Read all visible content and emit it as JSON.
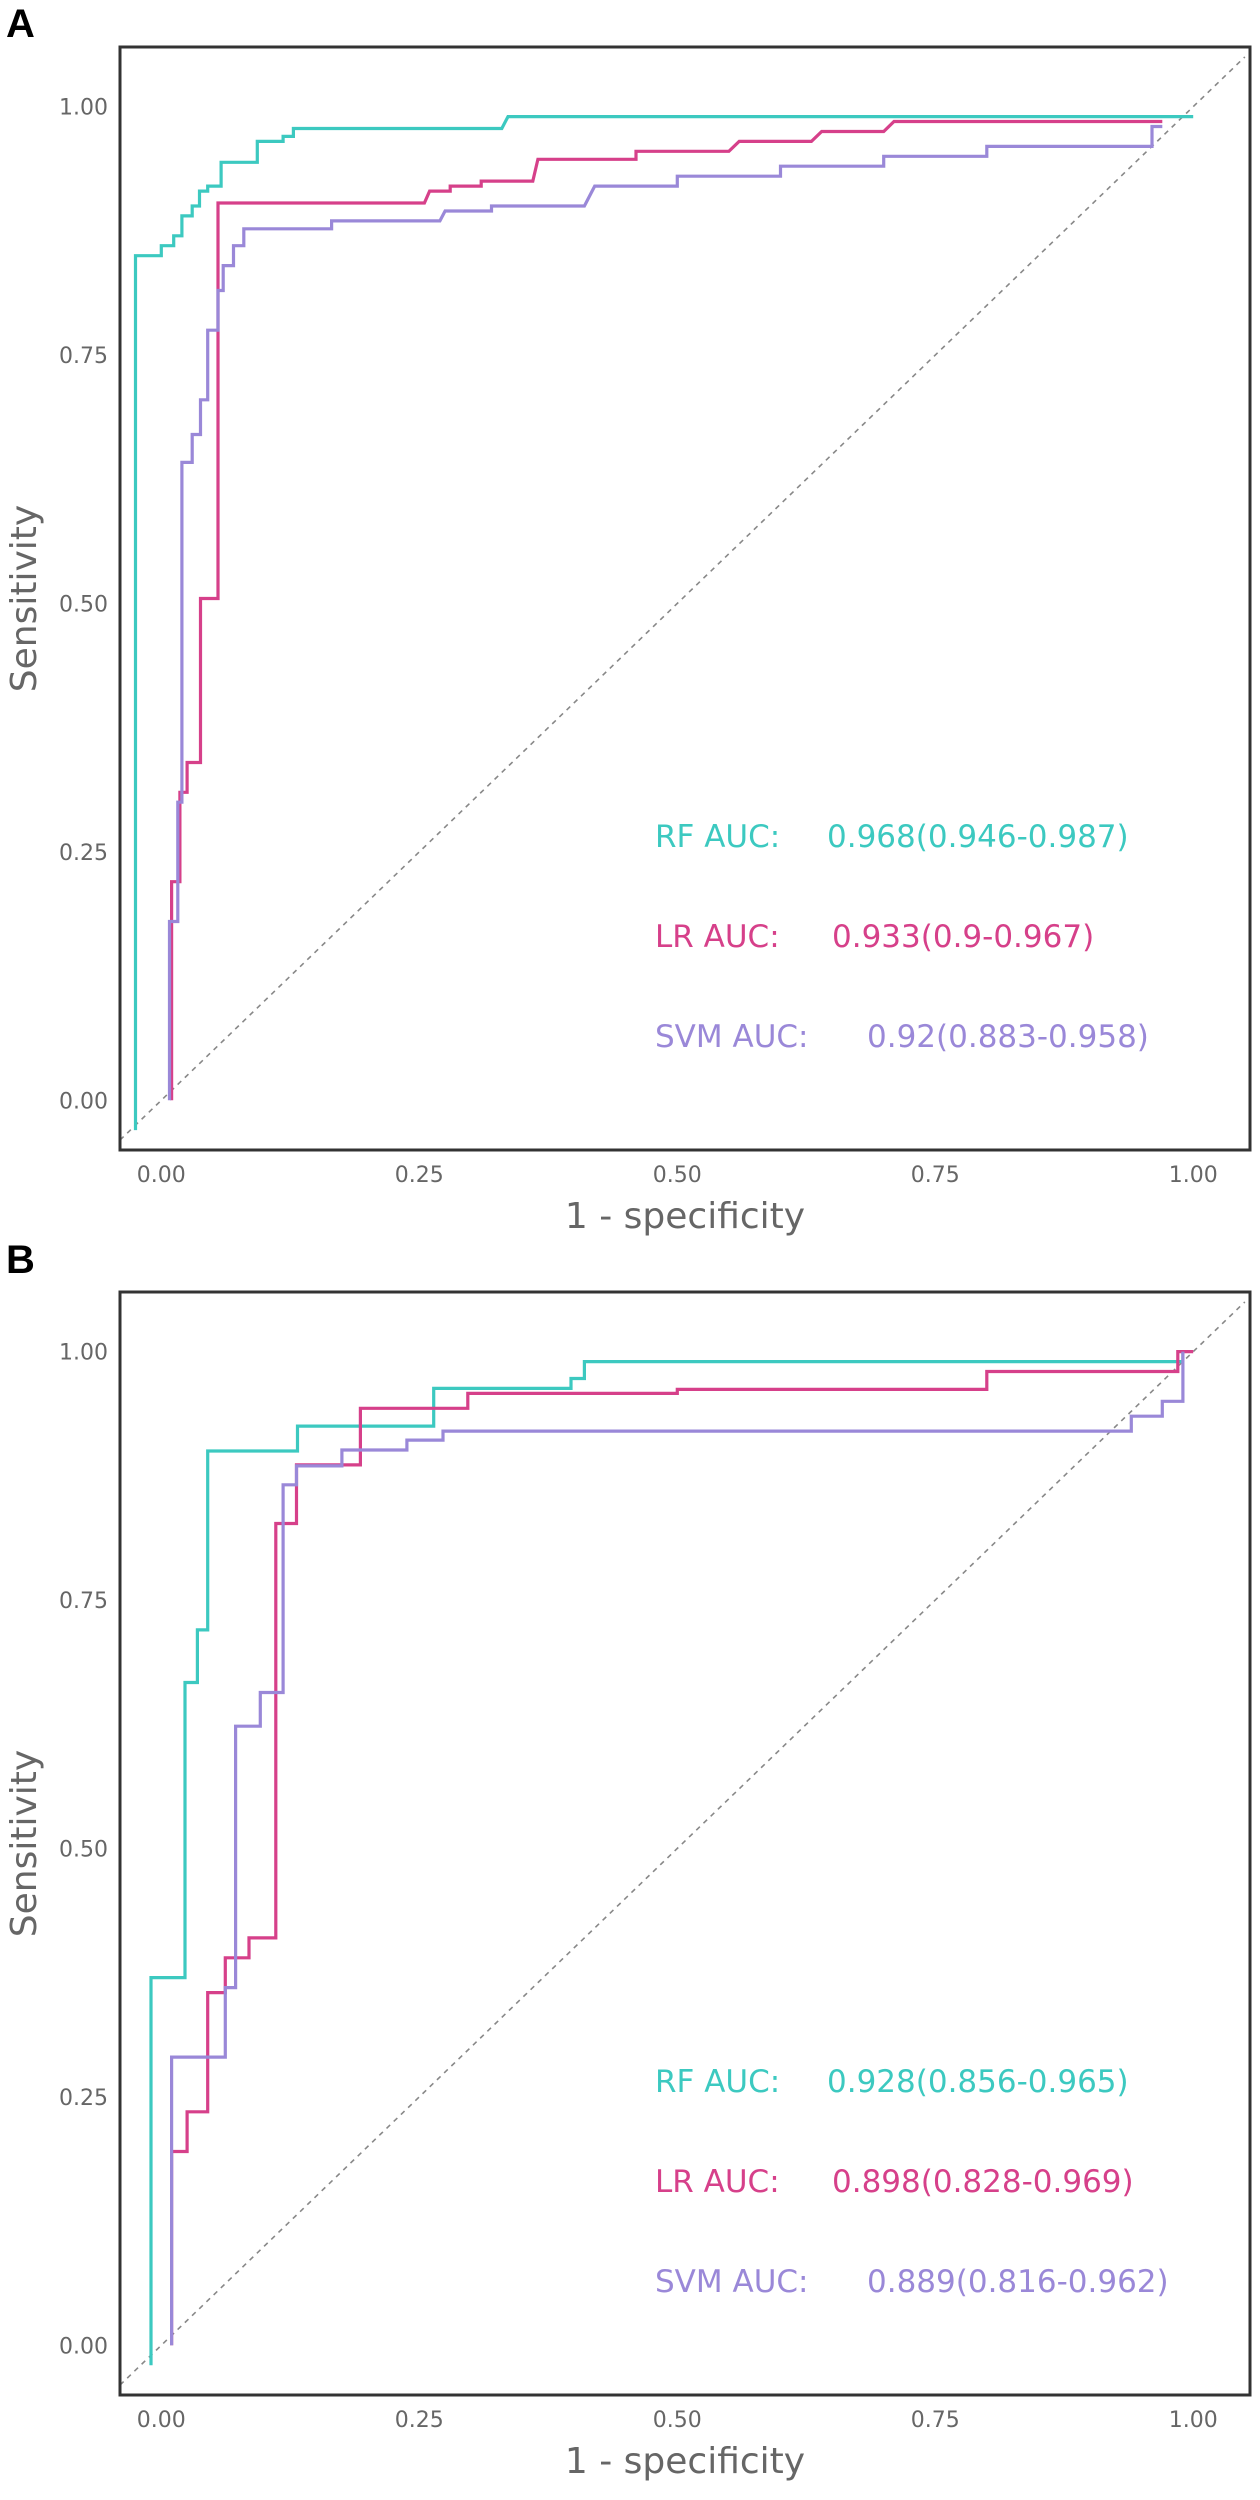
{
  "chart_data": [
    {
      "type": "line",
      "panel": "A",
      "xlabel": "1 - specificity",
      "ylabel": "Sensitivity",
      "xlim": [
        -0.04,
        1.055
      ],
      "ylim": [
        -0.05,
        1.06
      ],
      "xticks": [
        "0.00",
        "0.25",
        "0.50",
        "0.75",
        "1.00"
      ],
      "yticks": [
        "0.00",
        "0.25",
        "0.50",
        "0.75",
        "1.00"
      ],
      "grid": false,
      "diagonal_reference": true,
      "legend_placement": "bottom-right",
      "series": [
        {
          "name": "RF",
          "label": "RF AUC:",
          "auc": "0.968(0.946-0.987)",
          "color": "#3cc9c0",
          "points": [
            [
              -0.025,
              -0.03
            ],
            [
              -0.025,
              0.85
            ],
            [
              0.0,
              0.85
            ],
            [
              0.0,
              0.86
            ],
            [
              0.012,
              0.86
            ],
            [
              0.012,
              0.87
            ],
            [
              0.02,
              0.87
            ],
            [
              0.02,
              0.89
            ],
            [
              0.03,
              0.89
            ],
            [
              0.03,
              0.9
            ],
            [
              0.037,
              0.9
            ],
            [
              0.037,
              0.915
            ],
            [
              0.045,
              0.915
            ],
            [
              0.045,
              0.92
            ],
            [
              0.058,
              0.92
            ],
            [
              0.058,
              0.944
            ],
            [
              0.093,
              0.944
            ],
            [
              0.093,
              0.965
            ],
            [
              0.118,
              0.965
            ],
            [
              0.118,
              0.97
            ],
            [
              0.128,
              0.97
            ],
            [
              0.128,
              0.978
            ],
            [
              0.33,
              0.978
            ],
            [
              0.336,
              0.99
            ],
            [
              1.0,
              0.99
            ]
          ]
        },
        {
          "name": "LR",
          "label": "LR AUC:",
          "auc": "0.933(0.9-0.967)",
          "color": "#d6408a",
          "points": [
            [
              0.01,
              0.0
            ],
            [
              0.01,
              0.22
            ],
            [
              0.018,
              0.22
            ],
            [
              0.018,
              0.31
            ],
            [
              0.025,
              0.31
            ],
            [
              0.025,
              0.34
            ],
            [
              0.038,
              0.34
            ],
            [
              0.038,
              0.505
            ],
            [
              0.055,
              0.505
            ],
            [
              0.055,
              0.903
            ],
            [
              0.255,
              0.903
            ],
            [
              0.26,
              0.915
            ],
            [
              0.28,
              0.915
            ],
            [
              0.28,
              0.92
            ],
            [
              0.31,
              0.92
            ],
            [
              0.31,
              0.925
            ],
            [
              0.36,
              0.925
            ],
            [
              0.365,
              0.947
            ],
            [
              0.46,
              0.947
            ],
            [
              0.46,
              0.955
            ],
            [
              0.55,
              0.955
            ],
            [
              0.56,
              0.965
            ],
            [
              0.63,
              0.965
            ],
            [
              0.64,
              0.975
            ],
            [
              0.7,
              0.975
            ],
            [
              0.71,
              0.985
            ],
            [
              0.97,
              0.985
            ]
          ]
        },
        {
          "name": "SVM",
          "label": "SVM AUC:",
          "auc": "0.92(0.883-0.958)",
          "color": "#9a88d8",
          "points": [
            [
              0.008,
              0.0
            ],
            [
              0.008,
              0.18
            ],
            [
              0.016,
              0.18
            ],
            [
              0.016,
              0.3
            ],
            [
              0.02,
              0.3
            ],
            [
              0.02,
              0.642
            ],
            [
              0.03,
              0.642
            ],
            [
              0.03,
              0.67
            ],
            [
              0.038,
              0.67
            ],
            [
              0.038,
              0.705
            ],
            [
              0.045,
              0.705
            ],
            [
              0.045,
              0.775
            ],
            [
              0.055,
              0.775
            ],
            [
              0.055,
              0.815
            ],
            [
              0.06,
              0.815
            ],
            [
              0.06,
              0.84
            ],
            [
              0.07,
              0.84
            ],
            [
              0.07,
              0.86
            ],
            [
              0.08,
              0.86
            ],
            [
              0.08,
              0.877
            ],
            [
              0.165,
              0.877
            ],
            [
              0.165,
              0.885
            ],
            [
              0.27,
              0.885
            ],
            [
              0.275,
              0.895
            ],
            [
              0.32,
              0.895
            ],
            [
              0.32,
              0.9
            ],
            [
              0.41,
              0.9
            ],
            [
              0.42,
              0.92
            ],
            [
              0.5,
              0.92
            ],
            [
              0.5,
              0.93
            ],
            [
              0.6,
              0.93
            ],
            [
              0.6,
              0.94
            ],
            [
              0.7,
              0.94
            ],
            [
              0.7,
              0.95
            ],
            [
              0.8,
              0.95
            ],
            [
              0.8,
              0.96
            ],
            [
              0.96,
              0.96
            ],
            [
              0.96,
              0.98
            ],
            [
              0.97,
              0.98
            ]
          ]
        }
      ]
    },
    {
      "type": "line",
      "panel": "B",
      "xlabel": "1 - specificity",
      "ylabel": "Sensitivity",
      "xlim": [
        -0.04,
        1.055
      ],
      "ylim": [
        -0.05,
        1.06
      ],
      "xticks": [
        "0.00",
        "0.25",
        "0.50",
        "0.75",
        "1.00"
      ],
      "yticks": [
        "0.00",
        "0.25",
        "0.50",
        "0.75",
        "1.00"
      ],
      "grid": false,
      "diagonal_reference": true,
      "legend_placement": "bottom-right",
      "series": [
        {
          "name": "RF",
          "label": "RF AUC:",
          "auc": "0.928(0.856-0.965)",
          "color": "#3cc9c0",
          "points": [
            [
              -0.01,
              -0.02
            ],
            [
              -0.01,
              0.37
            ],
            [
              0.023,
              0.37
            ],
            [
              0.023,
              0.667
            ],
            [
              0.035,
              0.667
            ],
            [
              0.035,
              0.72
            ],
            [
              0.045,
              0.72
            ],
            [
              0.045,
              0.9
            ],
            [
              0.132,
              0.9
            ],
            [
              0.132,
              0.925
            ],
            [
              0.264,
              0.925
            ],
            [
              0.264,
              0.963
            ],
            [
              0.397,
              0.963
            ],
            [
              0.397,
              0.973
            ],
            [
              0.41,
              0.973
            ],
            [
              0.41,
              0.99
            ],
            [
              0.99,
              0.99
            ],
            [
              0.99,
              1.0
            ]
          ]
        },
        {
          "name": "LR",
          "label": "LR AUC:",
          "auc": "0.898(0.828-0.969)",
          "color": "#d6408a",
          "points": [
            [
              0.01,
              0.0
            ],
            [
              0.01,
              0.195
            ],
            [
              0.025,
              0.195
            ],
            [
              0.025,
              0.235
            ],
            [
              0.045,
              0.235
            ],
            [
              0.045,
              0.355
            ],
            [
              0.062,
              0.355
            ],
            [
              0.062,
              0.39
            ],
            [
              0.085,
              0.39
            ],
            [
              0.085,
              0.41
            ],
            [
              0.111,
              0.41
            ],
            [
              0.111,
              0.827
            ],
            [
              0.131,
              0.827
            ],
            [
              0.131,
              0.886
            ],
            [
              0.193,
              0.886
            ],
            [
              0.193,
              0.943
            ],
            [
              0.297,
              0.943
            ],
            [
              0.297,
              0.958
            ],
            [
              0.5,
              0.958
            ],
            [
              0.5,
              0.962
            ],
            [
              0.8,
              0.962
            ],
            [
              0.8,
              0.98
            ],
            [
              0.985,
              0.98
            ],
            [
              0.985,
              1.0
            ],
            [
              1.0,
              1.0
            ]
          ]
        },
        {
          "name": "SVM",
          "label": "SVM AUC:",
          "auc": "0.889(0.816-0.962)",
          "color": "#9a88d8",
          "points": [
            [
              0.01,
              0.0
            ],
            [
              0.01,
              0.29
            ],
            [
              0.062,
              0.29
            ],
            [
              0.062,
              0.36
            ],
            [
              0.072,
              0.36
            ],
            [
              0.072,
              0.623
            ],
            [
              0.096,
              0.623
            ],
            [
              0.096,
              0.657
            ],
            [
              0.118,
              0.657
            ],
            [
              0.118,
              0.866
            ],
            [
              0.131,
              0.866
            ],
            [
              0.131,
              0.885
            ],
            [
              0.175,
              0.885
            ],
            [
              0.175,
              0.901
            ],
            [
              0.238,
              0.901
            ],
            [
              0.238,
              0.911
            ],
            [
              0.273,
              0.911
            ],
            [
              0.273,
              0.92
            ],
            [
              0.94,
              0.92
            ],
            [
              0.94,
              0.935
            ],
            [
              0.97,
              0.935
            ],
            [
              0.97,
              0.95
            ],
            [
              0.99,
              0.95
            ],
            [
              0.99,
              1.0
            ]
          ]
        }
      ]
    }
  ]
}
